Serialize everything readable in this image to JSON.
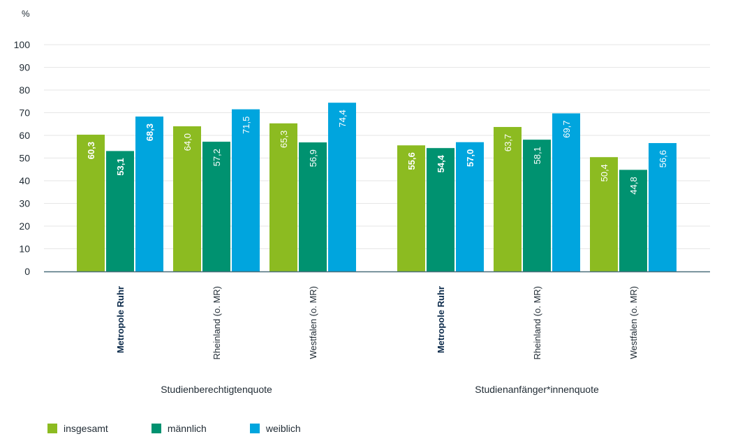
{
  "chart_data": {
    "type": "bar",
    "ylabel": "%",
    "ylim": [
      0,
      100
    ],
    "yticks": [
      0,
      10,
      20,
      30,
      40,
      50,
      60,
      70,
      80,
      90,
      100
    ],
    "grid": true,
    "legend_placement": "bottom-left",
    "groups": [
      {
        "label": "Studienberechtigtenquote",
        "categories": [
          {
            "label": "Metropole Ruhr",
            "emphasis": true,
            "values": [
              60.3,
              53.1,
              68.3
            ],
            "labels": [
              "60,3",
              "53,1",
              "68,3"
            ]
          },
          {
            "label": "Rheinland (o. MR)",
            "emphasis": false,
            "values": [
              64.0,
              57.2,
              71.5
            ],
            "labels": [
              "64,0",
              "57,2",
              "71,5"
            ]
          },
          {
            "label": "Westfalen (o. MR)",
            "emphasis": false,
            "values": [
              65.3,
              56.9,
              74.4
            ],
            "labels": [
              "65,3",
              "56,9",
              "74,4"
            ]
          }
        ]
      },
      {
        "label": "Studienanfänger*innenquote",
        "categories": [
          {
            "label": "Metropole Ruhr",
            "emphasis": true,
            "values": [
              55.6,
              54.4,
              57.0
            ],
            "labels": [
              "55,6",
              "54,4",
              "57,0"
            ]
          },
          {
            "label": "Rheinland (o. MR)",
            "emphasis": false,
            "values": [
              63.7,
              58.1,
              69.7
            ],
            "labels": [
              "63,7",
              "58,1",
              "69,7"
            ]
          },
          {
            "label": "Westfalen (o. MR)",
            "emphasis": false,
            "values": [
              50.4,
              44.8,
              56.6
            ],
            "labels": [
              "50,4",
              "44,8",
              "56,6"
            ]
          }
        ]
      }
    ],
    "series": [
      {
        "name": "insgesamt",
        "color": "#8cbb21"
      },
      {
        "name": "männlich",
        "color": "#009270"
      },
      {
        "name": "weiblich",
        "color": "#00a5de"
      }
    ]
  },
  "colors": {
    "axis_text": "#1f2a33",
    "emphasis_text": "#0b2a4a",
    "grid": "#e6e6e6",
    "axis": "#4a6f7a"
  }
}
